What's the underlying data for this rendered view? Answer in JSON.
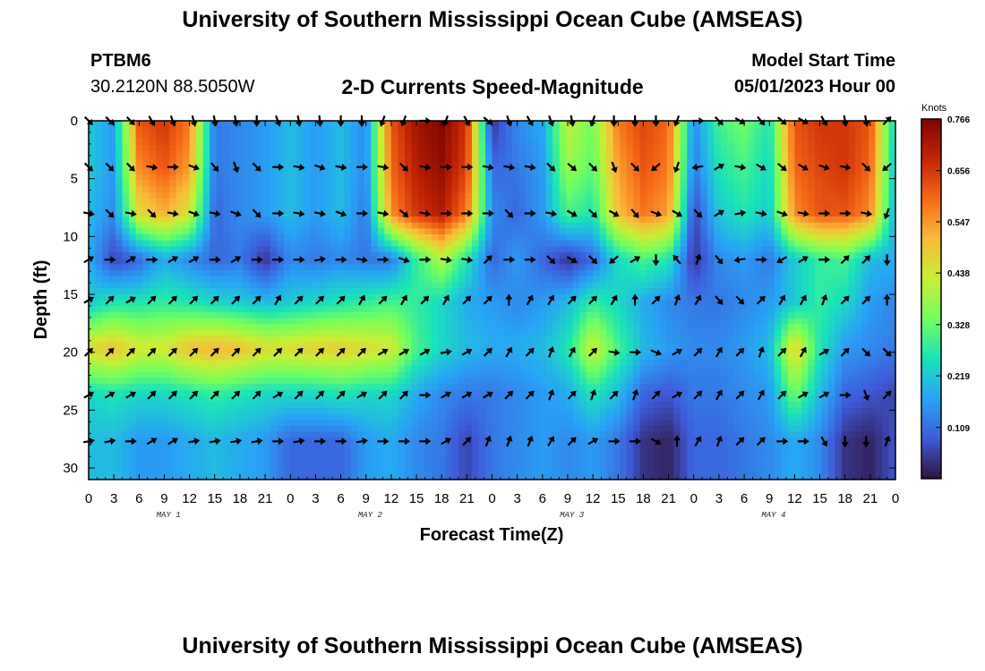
{
  "header": {
    "title": "University of Southern Mississippi Ocean Cube (AMSEAS)",
    "station_name": "PTBM6",
    "station_coords": "30.2120N  88.5050W",
    "subtitle": "2-D Currents Speed-Magnitude",
    "model_start_label": "Model Start Time",
    "model_start_value": "05/01/2023 Hour 00"
  },
  "footer": {
    "title": "University of Southern Mississippi Ocean Cube (AMSEAS)"
  },
  "colors": {
    "colormap": [
      "#30123b",
      "#3e5bd9",
      "#28a4f5",
      "#19e3b9",
      "#72fe5e",
      "#c8ef34",
      "#faba39",
      "#f56918",
      "#c42503",
      "#7a0403"
    ]
  },
  "chart_data": {
    "type": "heatmap",
    "title": "2-D Currents Speed-Magnitude",
    "xlabel": "Forecast Time(Z)",
    "ylabel": "Depth (ft)",
    "x_ticks": [
      "0",
      "3",
      "6",
      "9",
      "12",
      "15",
      "18",
      "21",
      "0",
      "3",
      "6",
      "9",
      "12",
      "15",
      "18",
      "21",
      "0",
      "3",
      "6",
      "9",
      "12",
      "15",
      "18",
      "21",
      "0",
      "3",
      "6",
      "9",
      "12",
      "15",
      "18",
      "21",
      "0"
    ],
    "x_range_hours": [
      0,
      96
    ],
    "day_labels": [
      {
        "text": "MAY 1",
        "hour": 9.5
      },
      {
        "text": "MAY 2",
        "hour": 33.5
      },
      {
        "text": "MAY 3",
        "hour": 57.5
      },
      {
        "text": "MAY 4",
        "hour": 81.5
      }
    ],
    "y_ticks": [
      0,
      5,
      10,
      15,
      20,
      25,
      30
    ],
    "ylim": [
      0,
      31
    ],
    "y_inverted": true,
    "colorbar": {
      "units": "Knots",
      "min": 0.0,
      "max": 0.766,
      "ticks": [
        "0.766",
        "0.656",
        "0.547",
        "0.438",
        "0.328",
        "0.219",
        "0.109"
      ],
      "tick_values": [
        0.766,
        0.656,
        0.547,
        0.438,
        0.328,
        0.219,
        0.109
      ]
    },
    "depths_ft": [
      0,
      4,
      8,
      12,
      15.7,
      19.7,
      23.6,
      27.6,
      31
    ],
    "hours": [
      0,
      3,
      6,
      9,
      12,
      15,
      18,
      21,
      24,
      27,
      30,
      33,
      36,
      39,
      42,
      45,
      48,
      51,
      54,
      57,
      60,
      63,
      66,
      69,
      72,
      75,
      78,
      81,
      84,
      87,
      90,
      93,
      96
    ],
    "speed_knots": [
      [
        0.22,
        0.16,
        0.62,
        0.66,
        0.58,
        0.12,
        0.14,
        0.16,
        0.2,
        0.16,
        0.2,
        0.14,
        0.62,
        0.72,
        0.76,
        0.66,
        0.04,
        0.14,
        0.18,
        0.42,
        0.34,
        0.58,
        0.64,
        0.6,
        0.14,
        0.3,
        0.34,
        0.26,
        0.62,
        0.66,
        0.66,
        0.62,
        0.22
      ],
      [
        0.22,
        0.16,
        0.56,
        0.62,
        0.54,
        0.12,
        0.14,
        0.16,
        0.2,
        0.16,
        0.2,
        0.14,
        0.6,
        0.7,
        0.74,
        0.64,
        0.1,
        0.12,
        0.16,
        0.38,
        0.32,
        0.54,
        0.62,
        0.58,
        0.12,
        0.26,
        0.3,
        0.24,
        0.6,
        0.64,
        0.66,
        0.6,
        0.2
      ],
      [
        0.2,
        0.14,
        0.46,
        0.52,
        0.44,
        0.1,
        0.14,
        0.16,
        0.2,
        0.16,
        0.2,
        0.12,
        0.56,
        0.66,
        0.7,
        0.58,
        0.14,
        0.1,
        0.16,
        0.3,
        0.26,
        0.5,
        0.58,
        0.54,
        0.06,
        0.22,
        0.26,
        0.22,
        0.56,
        0.62,
        0.62,
        0.56,
        0.18
      ],
      [
        0.18,
        0.06,
        0.1,
        0.18,
        0.14,
        0.1,
        0.12,
        0.04,
        0.14,
        0.12,
        0.14,
        0.12,
        0.12,
        0.28,
        0.4,
        0.26,
        0.1,
        0.16,
        0.1,
        0.04,
        0.1,
        0.24,
        0.3,
        0.26,
        0.04,
        0.14,
        0.16,
        0.12,
        0.22,
        0.28,
        0.3,
        0.2,
        0.18
      ],
      [
        0.22,
        0.26,
        0.26,
        0.28,
        0.26,
        0.24,
        0.22,
        0.2,
        0.22,
        0.24,
        0.26,
        0.28,
        0.3,
        0.28,
        0.24,
        0.18,
        0.16,
        0.14,
        0.16,
        0.2,
        0.28,
        0.24,
        0.18,
        0.14,
        0.12,
        0.12,
        0.14,
        0.16,
        0.22,
        0.28,
        0.24,
        0.16,
        0.14
      ],
      [
        0.46,
        0.5,
        0.44,
        0.44,
        0.5,
        0.52,
        0.5,
        0.46,
        0.46,
        0.48,
        0.48,
        0.46,
        0.44,
        0.3,
        0.24,
        0.2,
        0.18,
        0.18,
        0.2,
        0.26,
        0.44,
        0.3,
        0.2,
        0.16,
        0.14,
        0.14,
        0.16,
        0.2,
        0.48,
        0.26,
        0.16,
        0.14,
        0.12
      ],
      [
        0.24,
        0.26,
        0.24,
        0.24,
        0.26,
        0.28,
        0.26,
        0.24,
        0.24,
        0.24,
        0.26,
        0.24,
        0.24,
        0.18,
        0.14,
        0.12,
        0.12,
        0.14,
        0.16,
        0.18,
        0.26,
        0.2,
        0.1,
        0.08,
        0.12,
        0.12,
        0.14,
        0.16,
        0.34,
        0.2,
        0.1,
        0.08,
        0.06
      ],
      [
        0.2,
        0.2,
        0.16,
        0.16,
        0.18,
        0.2,
        0.18,
        0.16,
        0.1,
        0.1,
        0.1,
        0.16,
        0.18,
        0.14,
        0.12,
        0.06,
        0.12,
        0.14,
        0.16,
        0.14,
        0.16,
        0.12,
        0.04,
        0.02,
        0.1,
        0.1,
        0.12,
        0.14,
        0.18,
        0.14,
        0.04,
        0.02,
        0.08
      ],
      [
        0.2,
        0.2,
        0.16,
        0.16,
        0.18,
        0.2,
        0.18,
        0.16,
        0.1,
        0.1,
        0.1,
        0.16,
        0.18,
        0.14,
        0.12,
        0.06,
        0.12,
        0.14,
        0.16,
        0.14,
        0.16,
        0.12,
        0.04,
        0.02,
        0.1,
        0.1,
        0.12,
        0.14,
        0.18,
        0.14,
        0.04,
        0.02,
        0.08
      ]
    ],
    "vector_depths_ft": [
      0,
      4,
      8,
      12,
      15.5,
      20,
      23.7,
      27.7
    ],
    "vector_hours": [
      0,
      2.5,
      5,
      7.5,
      10,
      12.5,
      15,
      17.5,
      20,
      22.5,
      25,
      27.5,
      30,
      32.5,
      35,
      37.5,
      40,
      42.5,
      45,
      47.5,
      50,
      52.5,
      55,
      57.5,
      60,
      62.5,
      65,
      67.5,
      70,
      72.5,
      75,
      77.5,
      80,
      82.5,
      85,
      87.5,
      90,
      92.5,
      95
    ],
    "vector_directions_deg": [
      [
        135,
        135,
        135,
        150,
        160,
        165,
        170,
        170,
        180,
        160,
        170,
        175,
        180,
        180,
        200,
        200,
        90,
        200,
        150,
        130,
        160,
        150,
        160,
        170,
        200,
        180,
        180,
        180,
        200,
        90,
        135,
        120,
        140,
        130,
        120,
        150,
        170,
        170,
        45
      ],
      [
        135,
        135,
        135,
        100,
        90,
        110,
        140,
        160,
        135,
        90,
        100,
        110,
        100,
        90,
        100,
        135,
        100,
        90,
        90,
        100,
        100,
        100,
        135,
        130,
        135,
        160,
        135,
        230,
        200,
        260,
        60,
        100,
        120,
        130,
        120,
        110,
        100,
        135,
        230
      ],
      [
        100,
        135,
        100,
        135,
        100,
        110,
        100,
        110,
        135,
        90,
        100,
        100,
        110,
        90,
        100,
        130,
        100,
        90,
        90,
        90,
        135,
        90,
        100,
        120,
        135,
        120,
        140,
        110,
        120,
        135,
        60,
        80,
        100,
        110,
        100,
        90,
        90,
        100,
        200
      ],
      [
        60,
        90,
        60,
        90,
        60,
        60,
        90,
        60,
        90,
        90,
        90,
        80,
        90,
        100,
        90,
        110,
        90,
        100,
        100,
        45,
        90,
        90,
        135,
        120,
        135,
        230,
        60,
        180,
        320,
        20,
        140,
        260,
        90,
        240,
        60,
        90,
        45,
        45,
        180
      ],
      [
        60,
        45,
        60,
        45,
        45,
        45,
        45,
        45,
        45,
        30,
        45,
        45,
        45,
        30,
        45,
        30,
        45,
        30,
        45,
        45,
        0,
        30,
        30,
        45,
        45,
        30,
        0,
        45,
        20,
        30,
        140,
        135,
        45,
        30,
        30,
        20,
        45,
        45,
        0
      ],
      [
        45,
        45,
        45,
        45,
        45,
        45,
        45,
        45,
        45,
        45,
        45,
        45,
        45,
        45,
        60,
        60,
        60,
        80,
        60,
        45,
        30,
        45,
        20,
        30,
        45,
        100,
        90,
        110,
        60,
        45,
        30,
        45,
        20,
        45,
        30,
        60,
        45,
        135,
        135
      ],
      [
        60,
        60,
        60,
        45,
        45,
        45,
        45,
        45,
        45,
        60,
        45,
        45,
        45,
        60,
        45,
        45,
        90,
        60,
        60,
        60,
        45,
        45,
        20,
        45,
        20,
        45,
        20,
        45,
        60,
        45,
        30,
        45,
        30,
        45,
        60,
        60,
        90,
        160,
        45
      ],
      [
        80,
        80,
        90,
        60,
        60,
        80,
        80,
        80,
        80,
        90,
        80,
        90,
        90,
        80,
        90,
        90,
        90,
        60,
        45,
        20,
        20,
        20,
        30,
        45,
        60,
        90,
        90,
        120,
        0,
        30,
        20,
        45,
        45,
        90,
        90,
        150,
        180,
        180,
        20
      ]
    ]
  }
}
